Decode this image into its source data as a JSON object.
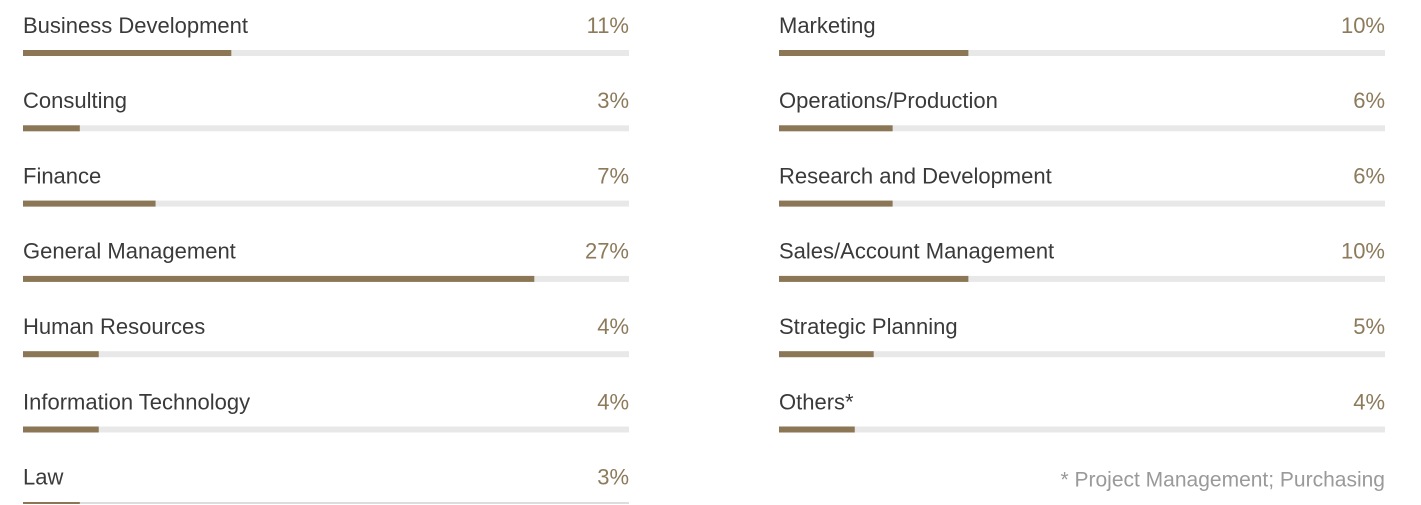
{
  "chart_data": {
    "type": "bar",
    "categories": [
      "Business Development",
      "Consulting",
      "Finance",
      "General Management",
      "Human Resources",
      "Information Technology",
      "Law",
      "Marketing",
      "Operations/Production",
      "Research and Development",
      "Sales/Account Management",
      "Strategic Planning",
      "Others*"
    ],
    "values": [
      11,
      3,
      7,
      27,
      4,
      4,
      3,
      10,
      6,
      6,
      10,
      5,
      4
    ],
    "value_labels": [
      "11%",
      "3%",
      "7%",
      "27%",
      "4%",
      "4%",
      "3%",
      "10%",
      "6%",
      "6%",
      "10%",
      "5%",
      "4%"
    ],
    "color": "#8b7655",
    "xlim": [
      0,
      32
    ],
    "note": "* Project Management; Purchasing"
  }
}
